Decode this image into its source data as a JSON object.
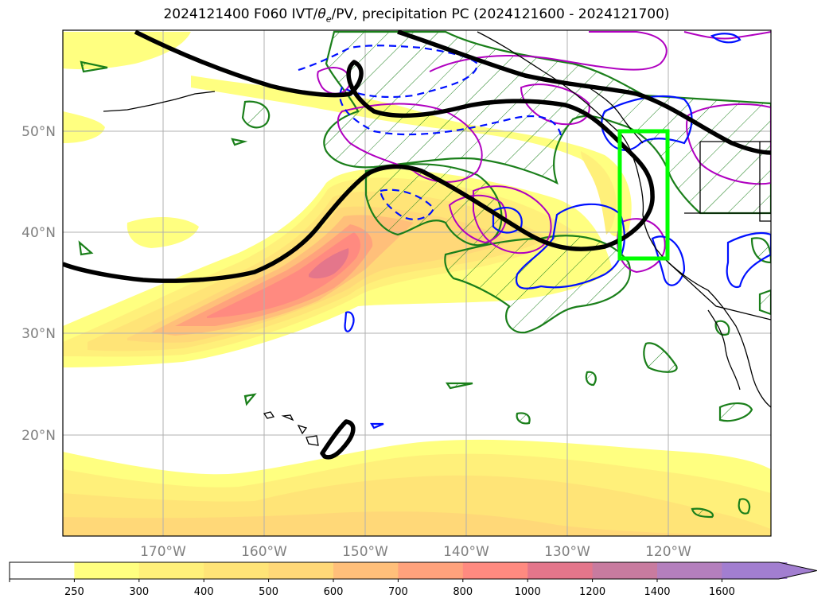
{
  "title": {
    "prefix": "2024121400 F060 IVT/",
    "theta": "θ",
    "theta_sub": "e",
    "suffix": "/PV, precipitation PC (2024121600 - 2024121700)"
  },
  "axes": {
    "lon_labels": [
      "170°W",
      "160°W",
      "150°W",
      "140°W",
      "130°W",
      "120°W"
    ],
    "lat_labels": [
      "50°N",
      "40°N",
      "30°N",
      "20°N"
    ],
    "tick_color": "#808080",
    "grid": true
  },
  "colorbar": {
    "ticks": [
      "250",
      "300",
      "400",
      "500",
      "600",
      "700",
      "800",
      "1000",
      "1200",
      "1400",
      "1600"
    ],
    "colors": [
      "#ffffff",
      "#ffff80",
      "#fff07a",
      "#ffe477",
      "#ffd878",
      "#ffbf7a",
      "#ffa27c",
      "#ff8a80",
      "#e4768b",
      "#c87b9f",
      "#b47fbd",
      "#a27ed0"
    ],
    "extend": "max"
  },
  "layers": {
    "ivt_fill": "IVT shading",
    "pv_contour": "PV contour (black)",
    "theta_pos": "θe positive (magenta)",
    "theta_neg": "θe anomaly (blue)",
    "precip": "precipitation PC (green hatched)",
    "box": "target region box (lime)"
  },
  "colors": {
    "pv": "#000000",
    "theta_pos": "#b000c0",
    "theta_neg": "#0010ff",
    "precip": "#1a7f1a",
    "box": "#00ff00",
    "coast": "#000000",
    "grid": "#b0b0b0"
  }
}
